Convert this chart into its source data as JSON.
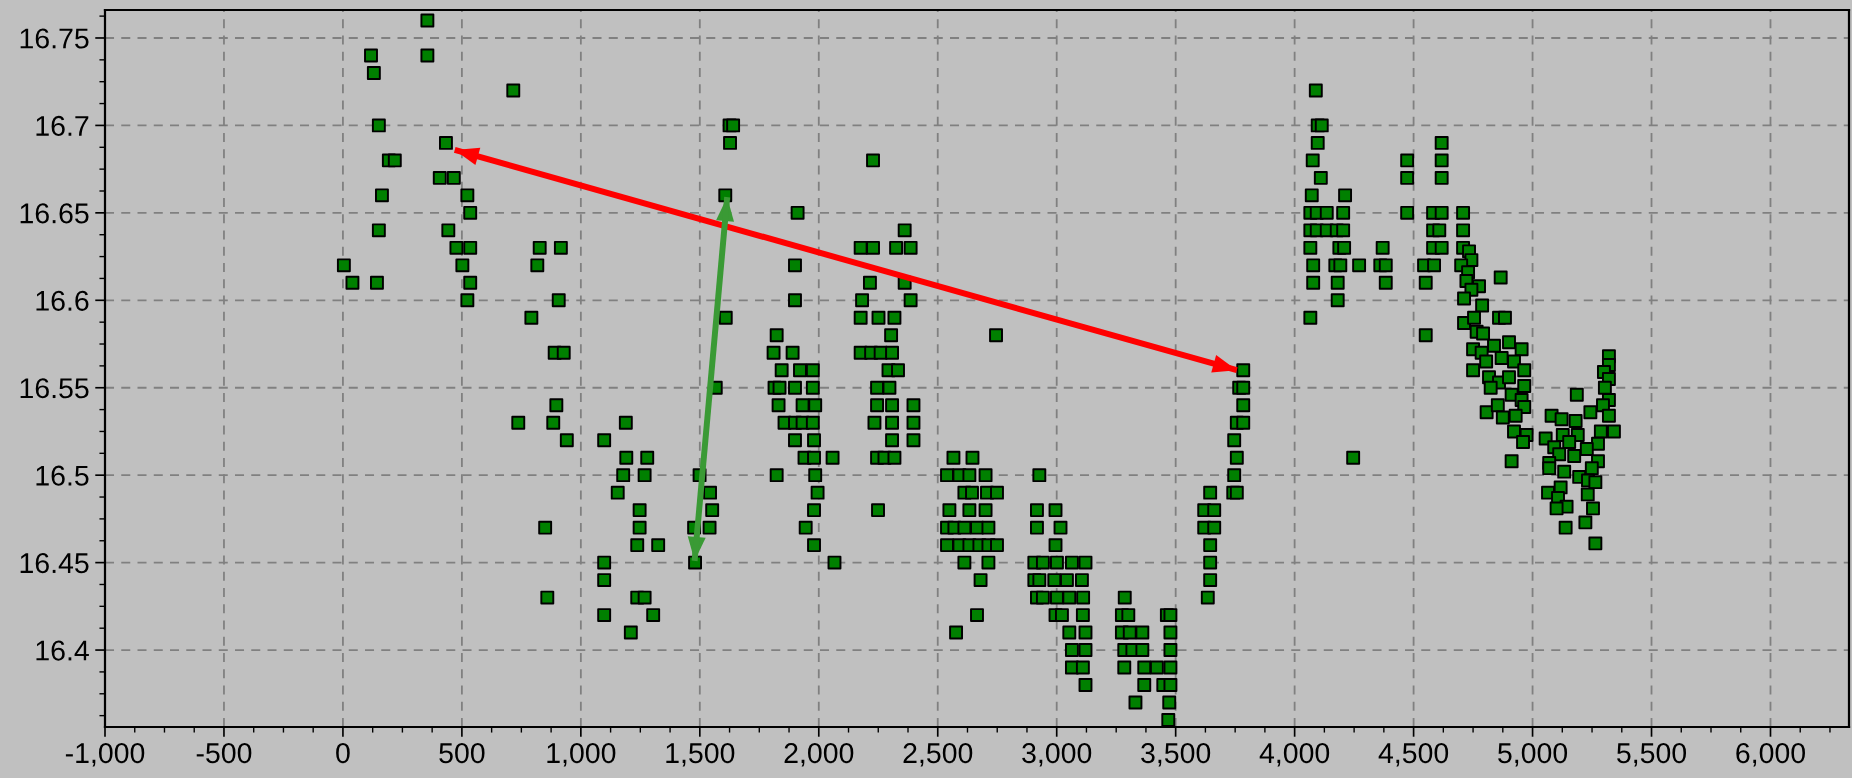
{
  "chart_data": {
    "type": "scatter",
    "marker": "square",
    "grid": true,
    "xlim": [
      -1000,
      6330
    ],
    "ylim": [
      16.356,
      16.766
    ],
    "xticks": [
      {
        "value": -1000,
        "label": "-1,000"
      },
      {
        "value": -500,
        "label": "-500"
      },
      0,
      500,
      {
        "value": 1000,
        "label": "1,000"
      },
      {
        "value": 1500,
        "label": "1,500"
      },
      {
        "value": 2000,
        "label": "2,000"
      },
      {
        "value": 2500,
        "label": "2,500"
      },
      {
        "value": 3000,
        "label": "3,000"
      },
      {
        "value": 3500,
        "label": "3,500"
      },
      {
        "value": 4000,
        "label": "4,000"
      },
      {
        "value": 4500,
        "label": "4,500"
      },
      {
        "value": 5000,
        "label": "5,000"
      },
      {
        "value": 5500,
        "label": "5,500"
      },
      {
        "value": 6000,
        "label": "6,000"
      },
      {
        "value": -875,
        "label": null
      },
      {
        "value": -750,
        "label": null
      },
      {
        "value": -625,
        "label": null
      },
      {
        "value": -375,
        "label": null
      },
      {
        "value": -250,
        "label": null
      },
      {
        "value": -125,
        "label": null
      },
      {
        "value": 125,
        "label": null
      },
      {
        "value": 250,
        "label": null
      },
      {
        "value": 375,
        "label": null
      },
      {
        "value": 625,
        "label": null
      },
      {
        "value": 750,
        "label": null
      },
      {
        "value": 875,
        "label": null
      },
      {
        "value": 1125,
        "label": null
      },
      {
        "value": 1250,
        "label": null
      },
      {
        "value": 1375,
        "label": null
      },
      {
        "value": 1625,
        "label": null
      },
      {
        "value": 1750,
        "label": null
      },
      {
        "value": 1875,
        "label": null
      },
      {
        "value": 2125,
        "label": null
      },
      {
        "value": 2250,
        "label": null
      },
      {
        "value": 2375,
        "label": null
      },
      {
        "value": 2625,
        "label": null
      },
      {
        "value": 2750,
        "label": null
      },
      {
        "value": 2875,
        "label": null
      },
      {
        "value": 3125,
        "label": null
      },
      {
        "value": 3250,
        "label": null
      },
      {
        "value": 3375,
        "label": null
      },
      {
        "value": 3625,
        "label": null
      },
      {
        "value": 3750,
        "label": null
      },
      {
        "value": 3875,
        "label": null
      },
      {
        "value": 4125,
        "label": null
      },
      {
        "value": 4250,
        "label": null
      },
      {
        "value": 4375,
        "label": null
      },
      {
        "value": 4625,
        "label": null
      },
      {
        "value": 4750,
        "label": null
      },
      {
        "value": 4875,
        "label": null
      },
      {
        "value": 5125,
        "label": null
      },
      {
        "value": 5250,
        "label": null
      },
      {
        "value": 5375,
        "label": null
      },
      {
        "value": 5625,
        "label": null
      },
      {
        "value": 5750,
        "label": null
      },
      {
        "value": 5875,
        "label": null
      },
      {
        "value": 6125,
        "label": null
      },
      {
        "value": 6250,
        "label": null
      }
    ],
    "yticks": [
      16.4,
      16.45,
      16.5,
      16.55,
      16.6,
      16.65,
      16.7,
      16.75,
      {
        "value": 16.3625,
        "label": null
      },
      {
        "value": 16.375,
        "label": null
      },
      {
        "value": 16.3875,
        "label": null
      },
      {
        "value": 16.4125,
        "label": null
      },
      {
        "value": 16.425,
        "label": null
      },
      {
        "value": 16.4375,
        "label": null
      },
      {
        "value": 16.4625,
        "label": null
      },
      {
        "value": 16.475,
        "label": null
      },
      {
        "value": 16.4875,
        "label": null
      },
      {
        "value": 16.5125,
        "label": null
      },
      {
        "value": 16.525,
        "label": null
      },
      {
        "value": 16.5375,
        "label": null
      },
      {
        "value": 16.5625,
        "label": null
      },
      {
        "value": 16.575,
        "label": null
      },
      {
        "value": 16.5875,
        "label": null
      },
      {
        "value": 16.6125,
        "label": null
      },
      {
        "value": 16.625,
        "label": null
      },
      {
        "value": 16.6375,
        "label": null
      },
      {
        "value": 16.6625,
        "label": null
      },
      {
        "value": 16.675,
        "label": null
      },
      {
        "value": 16.6875,
        "label": null
      },
      {
        "value": 16.7125,
        "label": null
      },
      {
        "value": 16.725,
        "label": null
      },
      {
        "value": 16.7375,
        "label": null
      },
      {
        "value": 16.7625,
        "label": null
      }
    ],
    "series": [
      {
        "color": "#008000",
        "x": [
          118,
          130,
          151,
          193,
          218,
          164,
          151,
          4,
          40,
          143,
          355,
          355,
          433,
          407,
          466,
          523,
          535,
          443,
          477,
          535,
          502,
          535,
          523,
          716,
          827,
          916,
          817,
          907,
          792,
          890,
          928,
          897,
          884,
          737,
          941,
          850,
          859,
          1098,
          1189,
          1191,
          1279,
          1178,
          1268,
          1155,
          1247,
          1247,
          1237,
          1325,
          1098,
          1098,
          1237,
          1268,
          1098,
          1304,
          1210,
          1480,
          1476,
          1541,
          1499,
          1543,
          1552,
          1567,
          1609,
          1607,
          1625,
          1640,
          1627,
          1911,
          1900,
          1900,
          1823,
          1810,
          1890,
          1844,
          1921,
          1975,
          1814,
          1835,
          1900,
          1975,
          1831,
          1932,
          1985,
          1856,
          1900,
          1932,
          1975,
          1900,
          1980,
          1940,
          1980,
          2058,
          1823,
          1985,
          1995,
          1980,
          1945,
          1980,
          2066,
          2228,
          2361,
          2176,
          2228,
          2325,
          2386,
          2215,
          2361,
          2182,
          2386,
          2176,
          2251,
          2318,
          2304,
          2176,
          2220,
          2260,
          2308,
          2293,
          2333,
          2245,
          2297,
          2245,
          2308,
          2398,
          2234,
          2308,
          2398,
          2308,
          2398,
          2245,
          2276,
          2318,
          2249,
          2745,
          2566,
          2646,
          2539,
          2591,
          2633,
          2701,
          2612,
          2644,
          2707,
          2749,
          2549,
          2633,
          2701,
          2539,
          2570,
          2612,
          2665,
          2713,
          2539,
          2591,
          2633,
          2675,
          2713,
          2749,
          2612,
          2713,
          2680,
          2665,
          2577,
          2927,
          2917,
          2995,
          2917,
          3016,
          2995,
          2906,
          2942,
          3001,
          3064,
          3121,
          2906,
          2927,
          2990,
          3043,
          3106,
          2917,
          2942,
          3001,
          3053,
          3111,
          2995,
          3022,
          3110,
          3053,
          3121,
          3064,
          3121,
          3064,
          3110,
          3121,
          3286,
          3274,
          3301,
          3463,
          3478,
          3274,
          3307,
          3360,
          3478,
          3284,
          3318,
          3360,
          3478,
          3284,
          3368,
          3421,
          3478,
          3368,
          3448,
          3478,
          3331,
          3473,
          3469,
          3645,
          3620,
          3662,
          3620,
          3662,
          3645,
          3645,
          3645,
          3635,
          3784,
          3767,
          3784,
          3784,
          3757,
          3784,
          3746,
          3757,
          3746,
          3742,
          3757,
          4089,
          4097,
          4114,
          4097,
          4076,
          4110,
          4072,
          4212,
          4066,
          4093,
          4135,
          4204,
          4066,
          4093,
          4135,
          4177,
          4204,
          4066,
          4188,
          4208,
          4078,
          4171,
          4192,
          4271,
          4078,
          4181,
          4181,
          4066,
          4246,
          4370,
          4360,
          4383,
          4383,
          4473,
          4473,
          4473,
          4618,
          4618,
          4618,
          4582,
          4618,
          4582,
          4608,
          4582,
          4618,
          4544,
          4586,
          4551,
          4551,
          4708,
          4708,
          4708,
          4733,
          4743,
          4700,
          4729,
          4722,
          4775,
          4743,
          4712,
          4866,
          4788,
          4712,
          4754,
          4859,
          4884,
          4765,
          4792,
          4750,
          4786,
          4750,
          4805,
          4838,
          4901,
          4954,
          4870,
          4922,
          4965,
          4817,
          4859,
          4901,
          4824,
          4965,
          4912,
          4954,
          4807,
          4854,
          4875,
          4965,
          4929,
          4922,
          4975,
          4960,
          4912,
          5321,
          5321,
          5300,
          5321,
          5304,
          5321,
          5296,
          5321,
          5243,
          5186,
          5342,
          5287,
          5275,
          5275,
          5080,
          5122,
          5181,
          5127,
          5190,
          5055,
          5091,
          5154,
          5228,
          5112,
          5175,
          5070,
          5070,
          5133,
          5196,
          5249,
          5233,
          5264,
          5118,
          5065,
          5107,
          5143,
          5101,
          5232,
          5254,
          5222,
          5139,
          5264
        ],
        "values": [
          16.74,
          16.73,
          16.7,
          16.68,
          16.68,
          16.66,
          16.64,
          16.62,
          16.61,
          16.61,
          16.76,
          16.74,
          16.69,
          16.67,
          16.67,
          16.66,
          16.65,
          16.64,
          16.63,
          16.63,
          16.62,
          16.61,
          16.6,
          16.72,
          16.63,
          16.63,
          16.62,
          16.6,
          16.59,
          16.57,
          16.57,
          16.54,
          16.53,
          16.53,
          16.52,
          16.47,
          16.43,
          16.52,
          16.53,
          16.51,
          16.51,
          16.5,
          16.5,
          16.49,
          16.48,
          16.47,
          16.46,
          16.46,
          16.45,
          16.44,
          16.43,
          16.43,
          16.42,
          16.42,
          16.41,
          16.45,
          16.47,
          16.47,
          16.5,
          16.49,
          16.48,
          16.55,
          16.59,
          16.66,
          16.7,
          16.7,
          16.69,
          16.65,
          16.62,
          16.6,
          16.58,
          16.57,
          16.57,
          16.56,
          16.56,
          16.56,
          16.55,
          16.55,
          16.55,
          16.55,
          16.54,
          16.54,
          16.54,
          16.53,
          16.53,
          16.53,
          16.53,
          16.52,
          16.52,
          16.51,
          16.51,
          16.51,
          16.5,
          16.5,
          16.49,
          16.48,
          16.47,
          16.46,
          16.45,
          16.68,
          16.64,
          16.63,
          16.63,
          16.63,
          16.63,
          16.61,
          16.61,
          16.6,
          16.6,
          16.59,
          16.59,
          16.59,
          16.58,
          16.57,
          16.57,
          16.57,
          16.57,
          16.56,
          16.56,
          16.55,
          16.55,
          16.54,
          16.54,
          16.54,
          16.53,
          16.53,
          16.53,
          16.52,
          16.52,
          16.51,
          16.51,
          16.51,
          16.48,
          16.58,
          16.51,
          16.51,
          16.5,
          16.5,
          16.5,
          16.5,
          16.49,
          16.49,
          16.49,
          16.49,
          16.48,
          16.48,
          16.48,
          16.47,
          16.47,
          16.47,
          16.47,
          16.47,
          16.46,
          16.46,
          16.46,
          16.46,
          16.46,
          16.46,
          16.45,
          16.45,
          16.44,
          16.42,
          16.41,
          16.5,
          16.48,
          16.48,
          16.47,
          16.47,
          16.46,
          16.45,
          16.45,
          16.45,
          16.45,
          16.45,
          16.44,
          16.44,
          16.44,
          16.44,
          16.44,
          16.43,
          16.43,
          16.43,
          16.43,
          16.43,
          16.42,
          16.42,
          16.42,
          16.41,
          16.41,
          16.4,
          16.4,
          16.39,
          16.39,
          16.38,
          16.43,
          16.42,
          16.42,
          16.42,
          16.42,
          16.41,
          16.41,
          16.41,
          16.41,
          16.4,
          16.4,
          16.4,
          16.4,
          16.39,
          16.39,
          16.39,
          16.39,
          16.38,
          16.38,
          16.38,
          16.37,
          16.37,
          16.36,
          16.49,
          16.48,
          16.48,
          16.47,
          16.47,
          16.46,
          16.45,
          16.44,
          16.43,
          16.56,
          16.55,
          16.55,
          16.54,
          16.53,
          16.53,
          16.52,
          16.51,
          16.5,
          16.49,
          16.49,
          16.72,
          16.7,
          16.7,
          16.69,
          16.68,
          16.67,
          16.66,
          16.66,
          16.65,
          16.65,
          16.65,
          16.65,
          16.64,
          16.64,
          16.64,
          16.64,
          16.64,
          16.63,
          16.63,
          16.63,
          16.62,
          16.62,
          16.62,
          16.62,
          16.61,
          16.61,
          16.6,
          16.59,
          16.51,
          16.63,
          16.62,
          16.62,
          16.61,
          16.68,
          16.67,
          16.65,
          16.69,
          16.68,
          16.67,
          16.65,
          16.65,
          16.64,
          16.64,
          16.63,
          16.63,
          16.62,
          16.62,
          16.61,
          16.58,
          16.65,
          16.64,
          16.63,
          16.628,
          16.623,
          16.62,
          16.616,
          16.611,
          16.608,
          16.606,
          16.601,
          16.613,
          16.597,
          16.587,
          16.59,
          16.59,
          16.59,
          16.582,
          16.581,
          16.572,
          16.57,
          16.56,
          16.565,
          16.574,
          16.576,
          16.572,
          16.567,
          16.565,
          16.56,
          16.556,
          16.553,
          16.556,
          16.55,
          16.551,
          16.546,
          16.543,
          16.536,
          16.54,
          16.533,
          16.539,
          16.534,
          16.525,
          16.523,
          16.519,
          16.508,
          16.568,
          16.563,
          16.559,
          16.555,
          16.55,
          16.543,
          16.54,
          16.534,
          16.536,
          16.546,
          16.525,
          16.525,
          16.518,
          16.508,
          16.534,
          16.532,
          16.531,
          16.523,
          16.523,
          16.521,
          16.516,
          16.519,
          16.515,
          16.512,
          16.511,
          16.507,
          16.504,
          16.502,
          16.499,
          16.504,
          16.497,
          16.496,
          16.493,
          16.49,
          16.487,
          16.482,
          16.481,
          16.489,
          16.481,
          16.473,
          16.47,
          16.461
        ]
      },
      {
        "type": "line",
        "marker": "none",
        "color": "#ff0000",
        "x": [
          470,
          3757
        ],
        "values": [
          16.686,
          16.56
        ]
      },
      {
        "type": "line",
        "marker": "none",
        "color": "#3a9a35",
        "x": [
          1615,
          1478
        ],
        "values": [
          16.659,
          16.451
        ]
      }
    ]
  }
}
